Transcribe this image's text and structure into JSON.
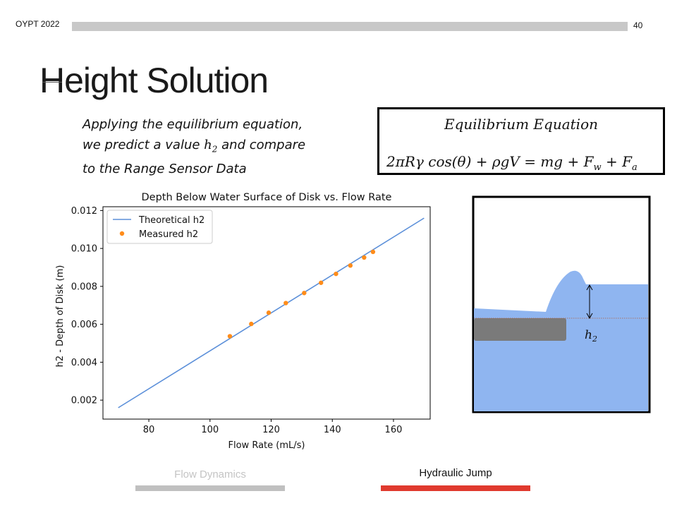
{
  "header": {
    "left": "OYPT 2022",
    "page_number": "40"
  },
  "slide": {
    "title": "Height Solution"
  },
  "intro": {
    "line1": "Applying the equilibrium equation,",
    "line2_a": "we predict a value ",
    "line2_var": "h",
    "line2_sub": "2",
    "line2_b": " and compare",
    "line3": "to the Range Sensor Data"
  },
  "equation": {
    "title": "Equilibrium Equation",
    "text_main": "2πRγ cos(θ) +  ρgV = mg +  F",
    "sub_w": "w",
    "text_mid": " + F",
    "sub_a": "a"
  },
  "chart_data": {
    "type": "line+scatter",
    "title": "Depth Below Water Surface of Disk vs. Flow Rate",
    "xlabel": "Flow Rate (mL/s)",
    "ylabel": "h2 - Depth of Disk (m)",
    "xlim": [
      65,
      172
    ],
    "ylim": [
      0.001,
      0.0122
    ],
    "xticks": [
      80,
      100,
      120,
      140,
      160
    ],
    "yticks": [
      0.002,
      0.004,
      0.006,
      0.008,
      0.01,
      0.012
    ],
    "ytick_labels": [
      "0.002",
      "0.004",
      "0.006",
      "0.008",
      "0.010",
      "0.012"
    ],
    "legend_position": "top-left",
    "series": [
      {
        "name": "Theoretical h2",
        "kind": "line",
        "color": "#5b8fd9",
        "x": [
          70,
          170
        ],
        "y": [
          0.0016,
          0.0116
        ]
      },
      {
        "name": "Measured h2",
        "kind": "scatter",
        "color": "#ff8c1a",
        "x": [
          106.5,
          113.5,
          119.2,
          124.8,
          130.8,
          136.3,
          141.2,
          145.9,
          150.4,
          153.3
        ],
        "y": [
          0.00537,
          0.00602,
          0.00661,
          0.00712,
          0.00765,
          0.00819,
          0.00866,
          0.0091,
          0.00952,
          0.00982
        ]
      }
    ]
  },
  "diagram": {
    "label_var": "h",
    "label_sub": "2"
  },
  "colors": {
    "water": "#8fb5f0",
    "disk": "#7a7a7a",
    "accent": "#e03a2e"
  },
  "nav": {
    "item1": "Flow Dynamics",
    "item2": "Hydraulic Jump"
  }
}
